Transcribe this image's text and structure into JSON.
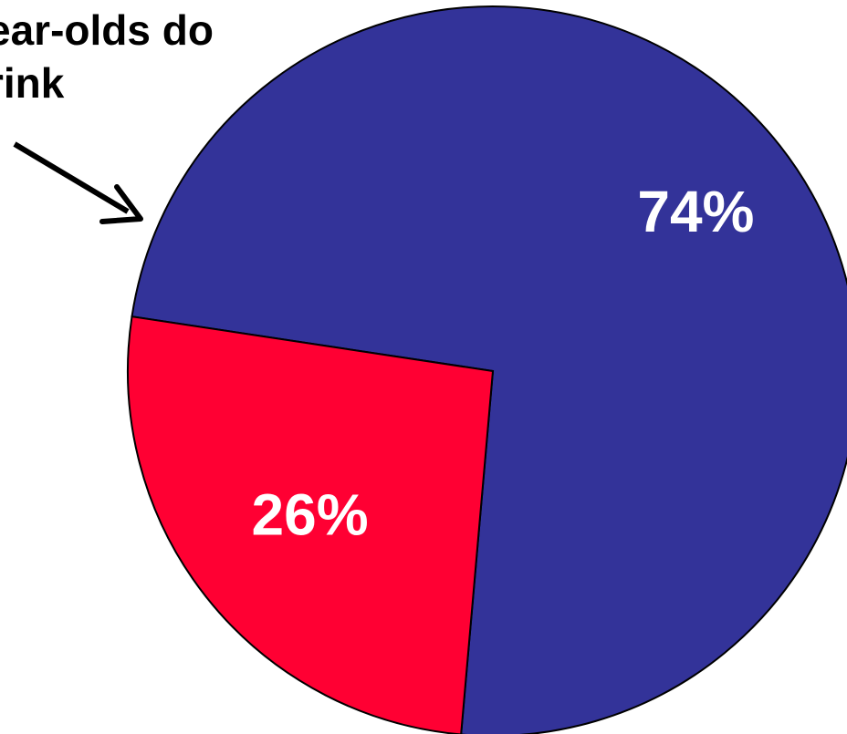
{
  "annotation": {
    "line1": "ear-olds do",
    "line2": "rink"
  },
  "colors": {
    "slice_blue": "#333399",
    "slice_red": "#FF0033",
    "label_text": "#FFFFFF",
    "outline": "#000000",
    "arrow": "#000000"
  },
  "chart_data": {
    "type": "pie",
    "slices": [
      {
        "label": "74%",
        "value": 74,
        "color": "#333399"
      },
      {
        "label": "26%",
        "value": 26,
        "color": "#FF0033"
      }
    ],
    "annotations": [
      "ear-olds do rink"
    ],
    "legend": "none"
  }
}
